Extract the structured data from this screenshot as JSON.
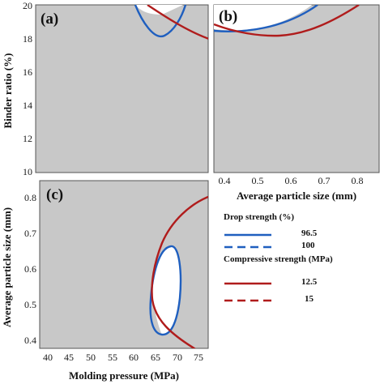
{
  "chart_data": [
    {
      "type": "contour",
      "panel": "(a)",
      "ylabel": "Binder ratio (%)",
      "ylim": [
        10,
        20
      ],
      "yticks": [
        "10",
        "12",
        "14",
        "16",
        "18",
        "20"
      ],
      "series": [
        {
          "name": "Drop strength (%) 96.5",
          "x": [
            0.05,
            0.1,
            0.15,
            0.2,
            0.25
          ],
          "y": [
            20,
            18.6,
            18.1,
            18.3,
            20
          ]
        },
        {
          "name": "Compressive strength (MPa) 12.5",
          "x": [
            0.1,
            0.3,
            0.5,
            0.7,
            1.0
          ],
          "y": [
            20,
            19.4,
            18.9,
            18.5,
            18.0
          ]
        }
      ]
    },
    {
      "type": "contour",
      "panel": "(b)",
      "xlabel": "Average particle size (mm)",
      "xlim": [
        0.37,
        0.87
      ],
      "xticks": [
        "0.4",
        "0.5",
        "0.6",
        "0.7",
        "0.8"
      ],
      "series": [
        {
          "name": "Drop strength (%) 96.5",
          "x": [
            0.37,
            0.45,
            0.55,
            0.65,
            0.75
          ],
          "y": [
            18.5,
            18.45,
            18.6,
            19.1,
            20
          ]
        },
        {
          "name": "Compressive strength (MPa) 12.5",
          "x": [
            0.37,
            0.45,
            0.55,
            0.65,
            0.75,
            0.8
          ],
          "y": [
            18.9,
            18.4,
            18.2,
            18.4,
            19.2,
            20
          ]
        }
      ]
    },
    {
      "type": "contour",
      "panel": "(c)",
      "xlabel": "Molding pressure (MPa)",
      "ylabel": "Average particle size (mm)",
      "xlim": [
        39,
        78
      ],
      "ylim": [
        0.37,
        0.83
      ],
      "xticks": [
        "40",
        "45",
        "50",
        "55",
        "60",
        "65",
        "70",
        "75"
      ],
      "yticks": [
        "0.4",
        "0.5",
        "0.6",
        "0.7",
        "0.8"
      ],
      "series": [
        {
          "name": "Drop strength (%) 96.5",
          "x": [
            69.8,
            71.5,
            72.4,
            72.0,
            70.5,
            68.2,
            66.6,
            65.7,
            66.4,
            68.0,
            69.8
          ],
          "y": [
            0.67,
            0.65,
            0.58,
            0.47,
            0.42,
            0.41,
            0.44,
            0.52,
            0.6,
            0.65,
            0.67
          ]
        },
        {
          "name": "Compressive strength (MPa) 12.5",
          "x": [
            78,
            75,
            71,
            68.5,
            67,
            66.3,
            66.5,
            68,
            71,
            73
          ],
          "y": [
            0.81,
            0.79,
            0.74,
            0.68,
            0.61,
            0.55,
            0.49,
            0.44,
            0.4,
            0.375
          ]
        }
      ]
    }
  ],
  "legend": {
    "drop_title": "Drop strength (%)",
    "comp_title": "Compressive  strength (MPa)",
    "items": [
      {
        "label": "96.5",
        "color": "#1f5fbf",
        "dash": false
      },
      {
        "label": "100",
        "color": "#1f5fbf",
        "dash": true
      },
      {
        "label": "12.5",
        "color": "#b01c1c",
        "dash": false
      },
      {
        "label": "15",
        "color": "#b01c1c",
        "dash": true
      }
    ]
  },
  "colors": {
    "drop": "#1f5fbf",
    "compressive": "#b01c1c",
    "panel_bg": "#c8c8c8",
    "feasible": "#ffffff"
  }
}
